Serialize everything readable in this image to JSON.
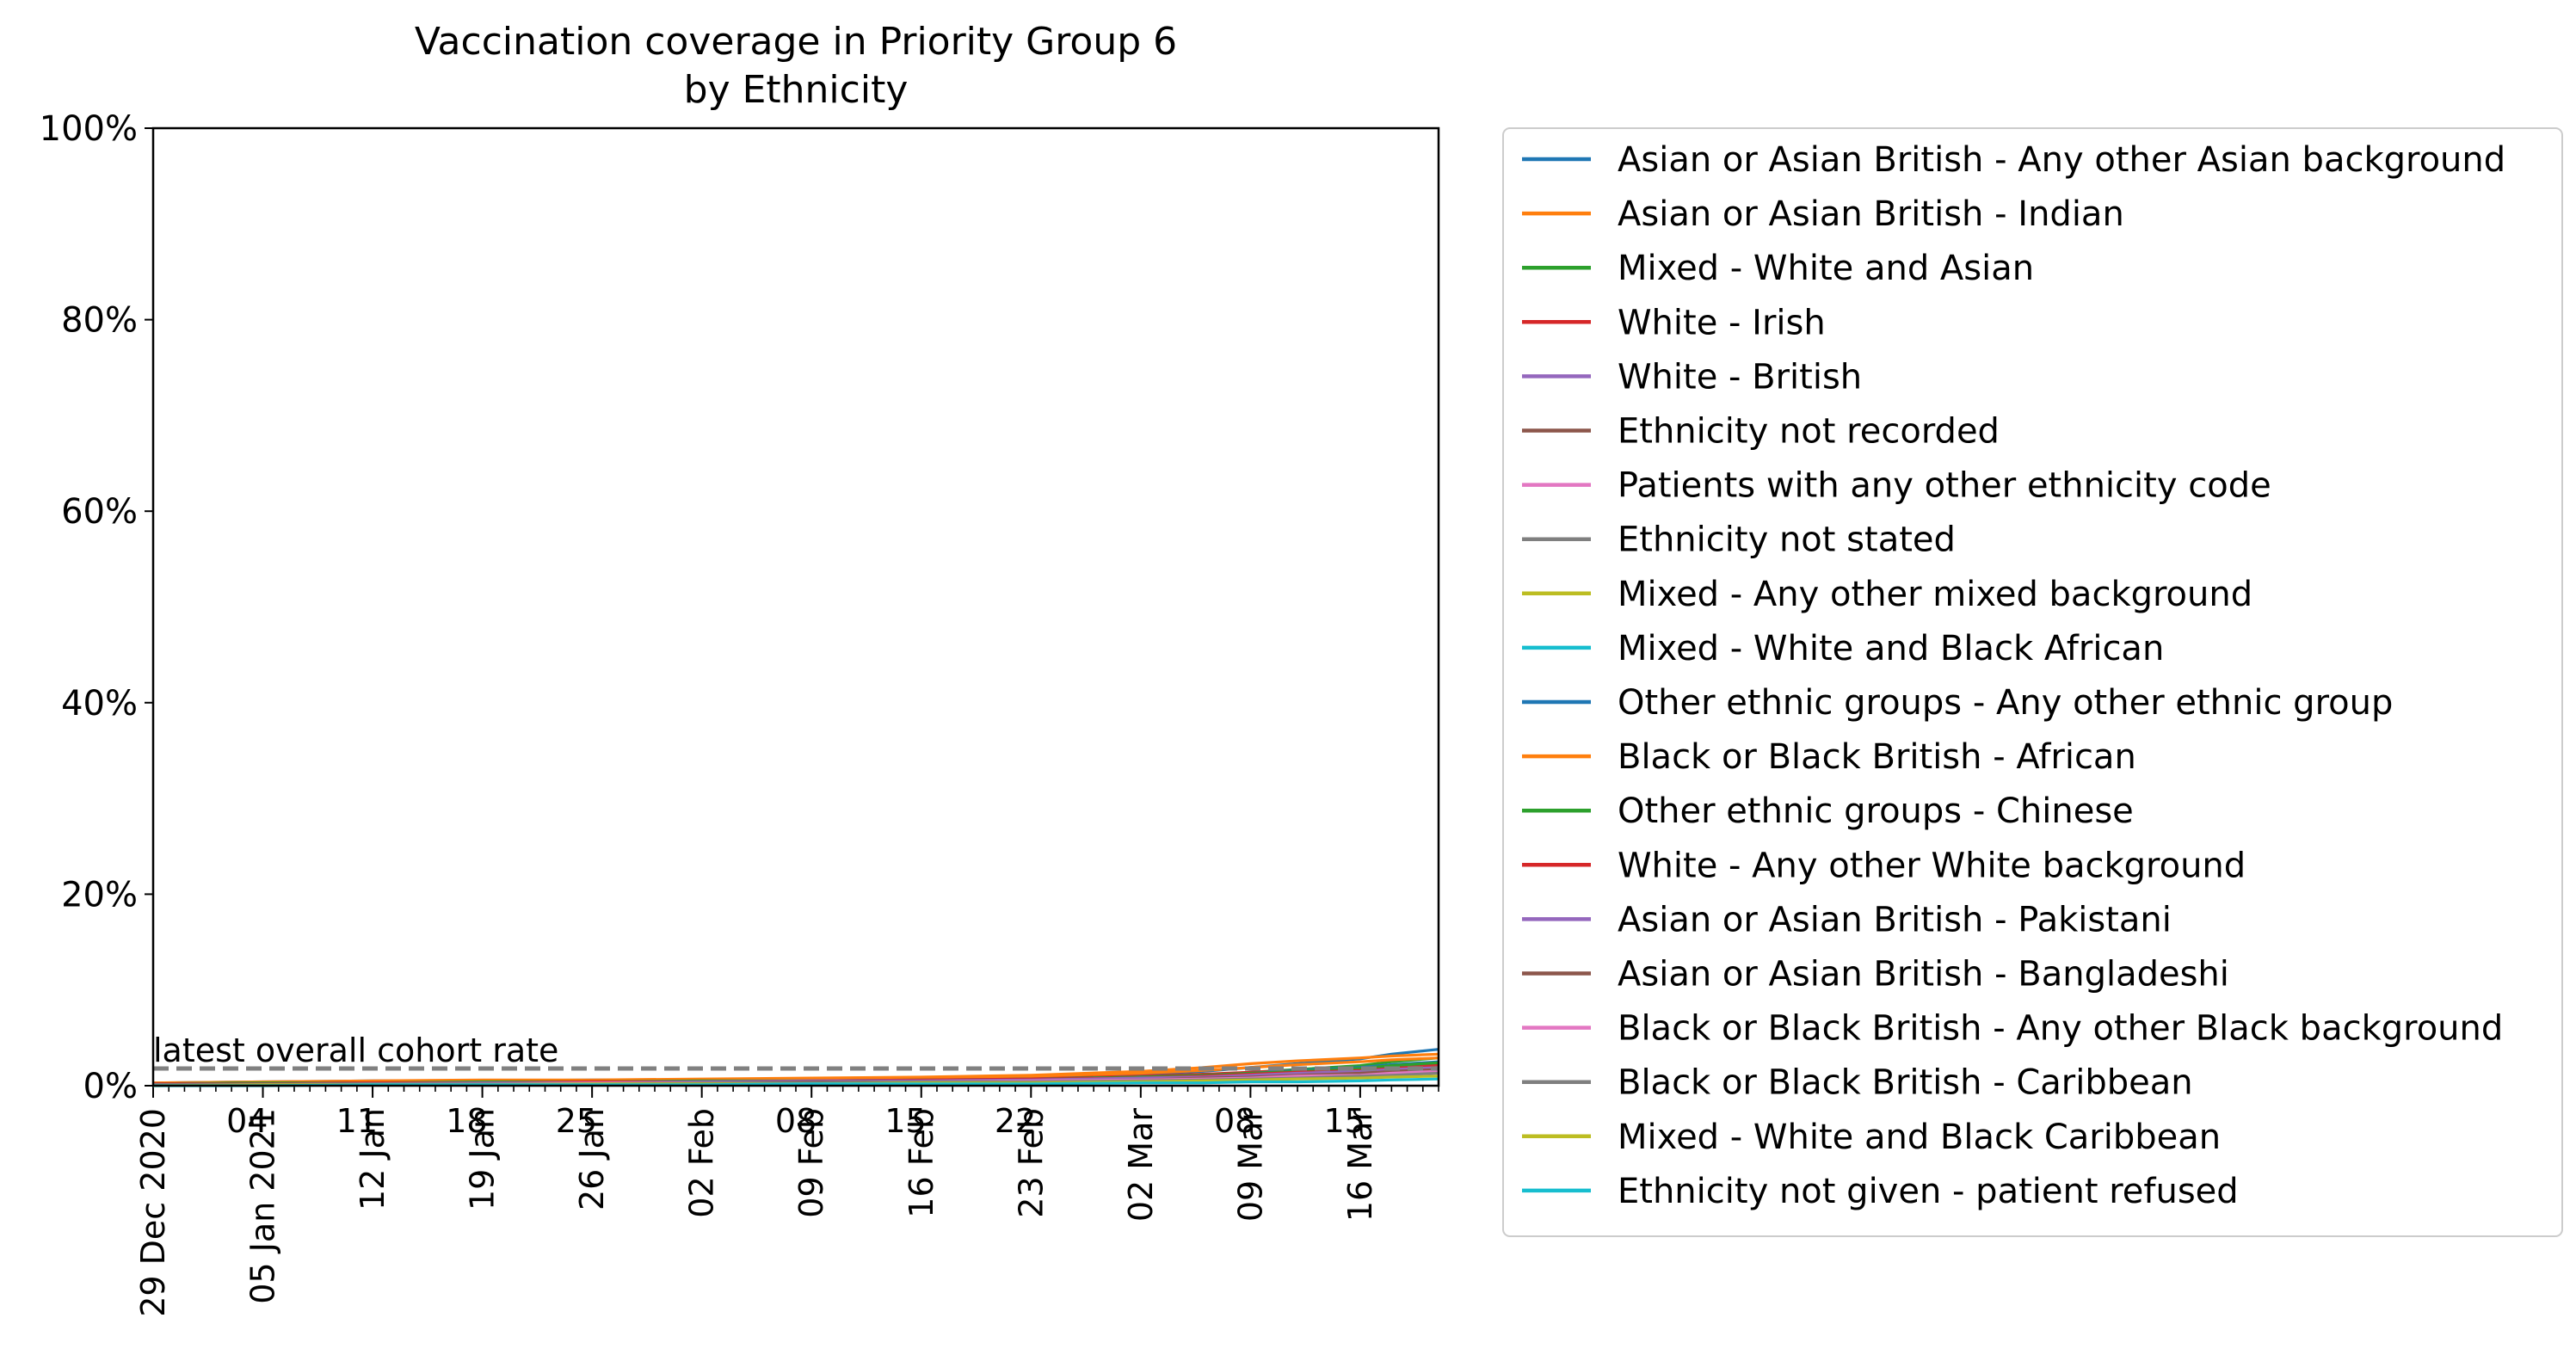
{
  "chart_data": {
    "type": "line",
    "title": "Vaccination coverage in Priority Group 6\nby Ethnicity",
    "xlabel": "",
    "ylabel": "",
    "ylim": [
      0,
      100
    ],
    "y_ticks": [
      "0%",
      "20%",
      "40%",
      "60%",
      "80%",
      "100%"
    ],
    "x_start": "2020-12-29",
    "x_end": "2021-03-21",
    "x_ticks": [
      {
        "date": "2020-12-29",
        "label": "29 Dec 2020"
      },
      {
        "date": "2021-01-05",
        "label": "05 Jan 2021"
      },
      {
        "date": "2021-01-12",
        "label": "12 Jan"
      },
      {
        "date": "2021-01-19",
        "label": "19 Jan"
      },
      {
        "date": "2021-01-26",
        "label": "26 Jan"
      },
      {
        "date": "2021-02-02",
        "label": "02 Feb"
      },
      {
        "date": "2021-02-09",
        "label": "09 Feb"
      },
      {
        "date": "2021-02-16",
        "label": "16 Feb"
      },
      {
        "date": "2021-02-23",
        "label": "23 Feb"
      },
      {
        "date": "2021-03-02",
        "label": "02 Mar"
      },
      {
        "date": "2021-03-09",
        "label": "09 Mar"
      },
      {
        "date": "2021-03-16",
        "label": "16 Mar"
      }
    ],
    "x_minor_labels": [
      {
        "date": "2021-01-04",
        "label": "04"
      },
      {
        "date": "2021-01-11",
        "label": "11"
      },
      {
        "date": "2021-01-18",
        "label": "18"
      },
      {
        "date": "2021-01-25",
        "label": "25"
      },
      {
        "date": "2021-02-08",
        "label": "08"
      },
      {
        "date": "2021-02-15",
        "label": "15"
      },
      {
        "date": "2021-02-22",
        "label": "22"
      },
      {
        "date": "2021-03-08",
        "label": "08"
      },
      {
        "date": "2021-03-15",
        "label": "15"
      }
    ],
    "x": [
      "2020-12-29",
      "2021-01-05",
      "2021-01-12",
      "2021-01-19",
      "2021-01-26",
      "2021-02-02",
      "2021-02-09",
      "2021-02-16",
      "2021-02-23",
      "2021-03-02",
      "2021-03-06",
      "2021-03-09",
      "2021-03-12",
      "2021-03-16",
      "2021-03-18",
      "2021-03-21"
    ],
    "series": [
      {
        "name": "Asian or Asian British - Any other Asian background",
        "color": "#1f77b4",
        "values": [
          0.3,
          0.4,
          0.5,
          0.5,
          0.6,
          0.6,
          0.7,
          0.8,
          0.9,
          1.2,
          1.5,
          1.9,
          2.3,
          2.8,
          3.3,
          3.8
        ]
      },
      {
        "name": "Asian or Asian British - Indian",
        "color": "#ff7f0e",
        "values": [
          0.3,
          0.4,
          0.5,
          0.6,
          0.6,
          0.7,
          0.8,
          0.9,
          1.1,
          1.5,
          1.9,
          2.3,
          2.6,
          2.9,
          3.1,
          3.3
        ]
      },
      {
        "name": "Mixed - White and Asian",
        "color": "#2ca02c",
        "values": [
          0.2,
          0.3,
          0.3,
          0.4,
          0.4,
          0.5,
          0.5,
          0.6,
          0.7,
          0.9,
          1.1,
          1.4,
          1.7,
          2.1,
          2.5,
          2.9
        ]
      },
      {
        "name": "White - Irish",
        "color": "#d62728",
        "values": [
          0.2,
          0.3,
          0.4,
          0.4,
          0.5,
          0.5,
          0.6,
          0.7,
          0.8,
          1.0,
          1.2,
          1.4,
          1.6,
          1.8,
          2.0,
          2.2
        ]
      },
      {
        "name": "White - British",
        "color": "#9467bd",
        "values": [
          0.2,
          0.3,
          0.3,
          0.4,
          0.4,
          0.5,
          0.6,
          0.6,
          0.7,
          0.9,
          1.0,
          1.2,
          1.4,
          1.6,
          1.8,
          2.0
        ]
      },
      {
        "name": "Ethnicity not recorded",
        "color": "#8c564b",
        "values": [
          0.1,
          0.2,
          0.2,
          0.3,
          0.3,
          0.4,
          0.4,
          0.5,
          0.5,
          0.7,
          0.8,
          0.9,
          1.1,
          1.3,
          1.5,
          1.7
        ]
      },
      {
        "name": "Patients with any other ethnicity code",
        "color": "#e377c2",
        "values": [
          0.1,
          0.2,
          0.2,
          0.3,
          0.3,
          0.4,
          0.4,
          0.5,
          0.6,
          0.7,
          0.8,
          1.0,
          1.2,
          1.4,
          1.6,
          1.8
        ]
      },
      {
        "name": "Ethnicity not stated",
        "color": "#7f7f7f",
        "values": [
          0.1,
          0.1,
          0.2,
          0.2,
          0.3,
          0.3,
          0.4,
          0.4,
          0.5,
          0.6,
          0.7,
          0.8,
          1.0,
          1.1,
          1.3,
          1.5
        ]
      },
      {
        "name": "Mixed - Any other mixed background",
        "color": "#bcbd22",
        "values": [
          0.1,
          0.2,
          0.2,
          0.3,
          0.3,
          0.3,
          0.4,
          0.4,
          0.5,
          0.6,
          0.7,
          0.9,
          1.0,
          1.2,
          1.4,
          1.6
        ]
      },
      {
        "name": "Mixed - White and Black African",
        "color": "#17becf",
        "values": [
          0.1,
          0.1,
          0.2,
          0.2,
          0.2,
          0.3,
          0.3,
          0.4,
          0.4,
          0.5,
          0.6,
          0.7,
          0.9,
          1.0,
          1.2,
          1.4
        ]
      },
      {
        "name": "Other ethnic groups - Any other ethnic group",
        "color": "#1f77b4",
        "values": [
          0.1,
          0.2,
          0.3,
          0.3,
          0.4,
          0.4,
          0.5,
          0.6,
          0.7,
          0.9,
          1.1,
          1.3,
          1.6,
          1.9,
          2.2,
          2.5
        ]
      },
      {
        "name": "Black or Black British - African",
        "color": "#ff7f0e",
        "values": [
          0.2,
          0.3,
          0.4,
          0.5,
          0.5,
          0.6,
          0.7,
          0.8,
          1.0,
          1.3,
          1.6,
          1.9,
          2.2,
          2.5,
          2.7,
          2.9
        ]
      },
      {
        "name": "Other ethnic groups - Chinese",
        "color": "#2ca02c",
        "values": [
          0.2,
          0.3,
          0.3,
          0.4,
          0.4,
          0.5,
          0.5,
          0.6,
          0.7,
          0.9,
          1.1,
          1.3,
          1.5,
          1.8,
          2.1,
          2.4
        ]
      },
      {
        "name": "White - Any other White background",
        "color": "#d62728",
        "values": [
          0.2,
          0.2,
          0.3,
          0.3,
          0.4,
          0.4,
          0.5,
          0.6,
          0.7,
          0.8,
          1.0,
          1.2,
          1.4,
          1.6,
          1.8,
          2.0
        ]
      },
      {
        "name": "Asian or Asian British - Pakistani",
        "color": "#9467bd",
        "values": [
          0.1,
          0.2,
          0.2,
          0.3,
          0.3,
          0.4,
          0.5,
          0.5,
          0.6,
          0.8,
          0.9,
          1.1,
          1.3,
          1.5,
          1.7,
          1.9
        ]
      },
      {
        "name": "Asian or Asian British - Bangladeshi",
        "color": "#8c564b",
        "values": [
          0.1,
          0.2,
          0.2,
          0.2,
          0.3,
          0.3,
          0.4,
          0.4,
          0.5,
          0.6,
          0.8,
          0.9,
          1.1,
          1.3,
          1.5,
          1.7
        ]
      },
      {
        "name": "Black or Black British - Any other Black background",
        "color": "#e377c2",
        "values": [
          0.1,
          0.1,
          0.2,
          0.2,
          0.3,
          0.3,
          0.3,
          0.4,
          0.5,
          0.6,
          0.7,
          0.8,
          1.0,
          1.1,
          1.3,
          1.5
        ]
      },
      {
        "name": "Black or Black British - Caribbean",
        "color": "#7f7f7f",
        "values": [
          0.1,
          0.1,
          0.2,
          0.2,
          0.2,
          0.3,
          0.3,
          0.4,
          0.4,
          0.5,
          0.6,
          0.7,
          0.8,
          1.0,
          1.1,
          1.3
        ]
      },
      {
        "name": "Mixed - White and Black Caribbean",
        "color": "#bcbd22",
        "values": [
          0.0,
          0.1,
          0.1,
          0.1,
          0.2,
          0.2,
          0.2,
          0.3,
          0.3,
          0.4,
          0.5,
          0.6,
          0.7,
          0.8,
          0.9,
          1.0
        ]
      },
      {
        "name": "Ethnicity not given - patient refused",
        "color": "#17becf",
        "values": [
          0.0,
          0.0,
          0.1,
          0.1,
          0.1,
          0.1,
          0.2,
          0.2,
          0.2,
          0.3,
          0.3,
          0.4,
          0.4,
          0.5,
          0.6,
          0.7
        ]
      }
    ],
    "reference_line": {
      "label": "latest overall cohort rate",
      "value": 1.8,
      "color": "#808080",
      "style": "dashed"
    },
    "grid": false,
    "legend_position": "outside right"
  }
}
